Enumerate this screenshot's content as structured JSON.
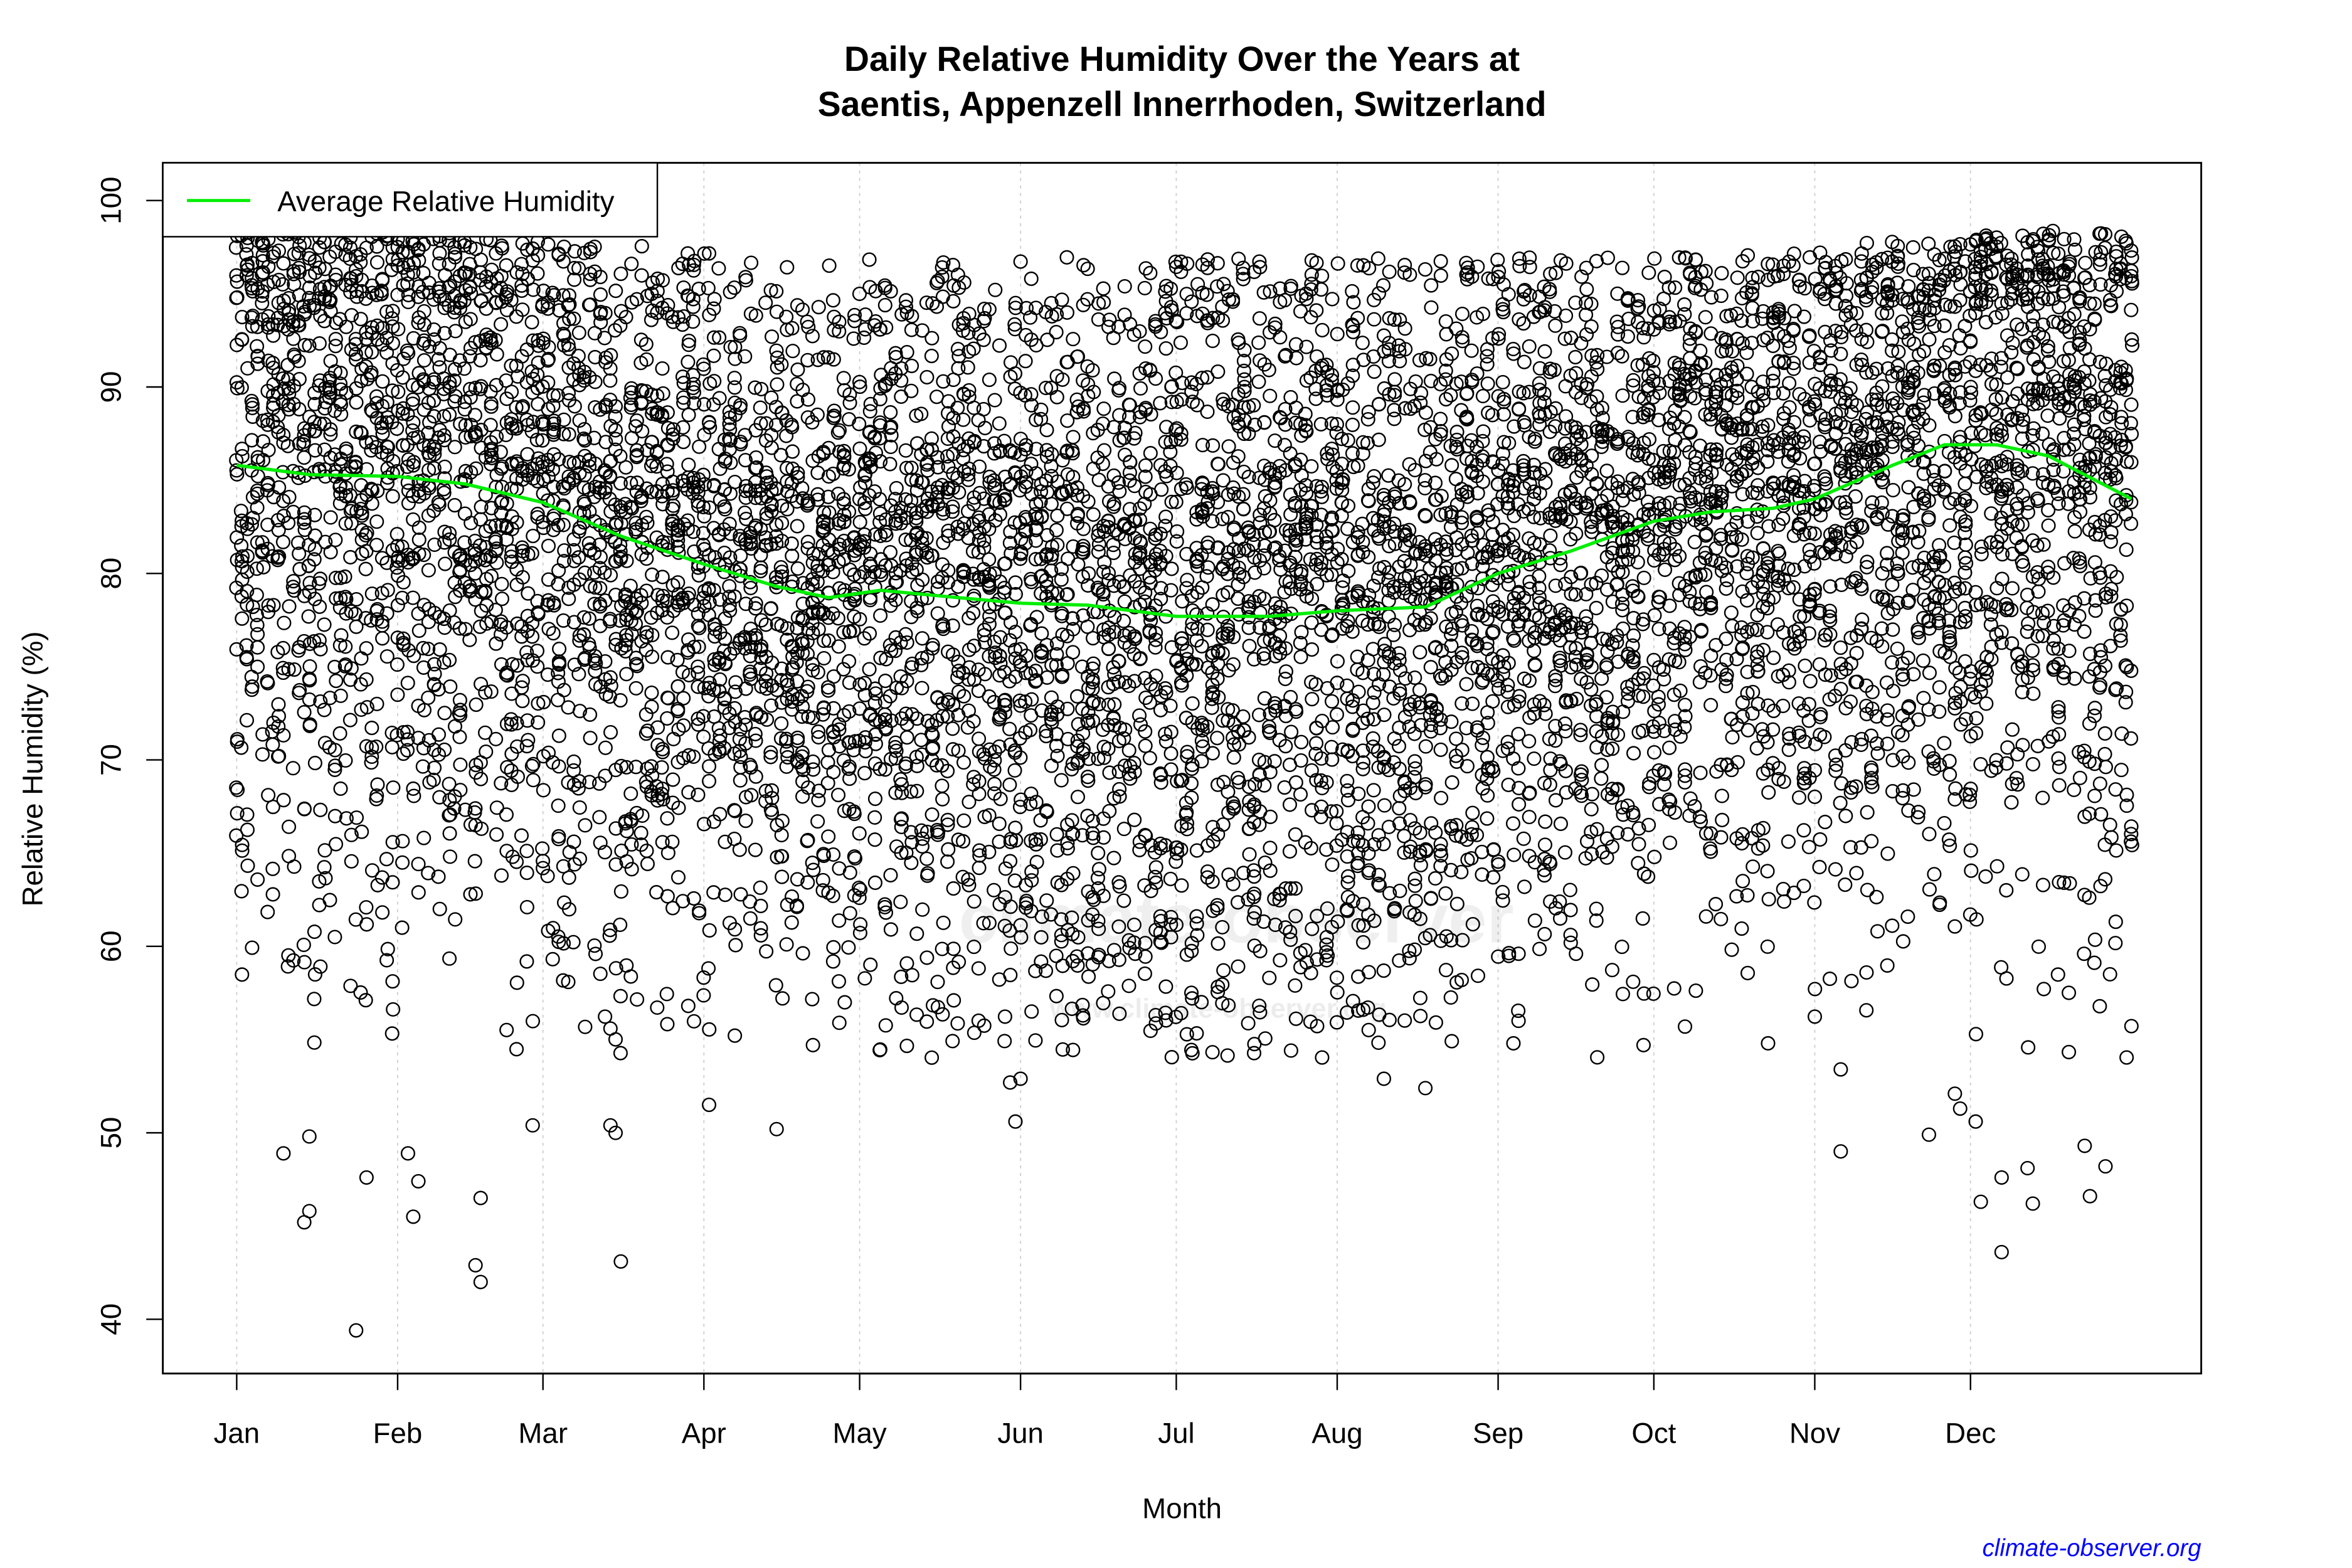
{
  "chart_data": {
    "type": "scatter",
    "title_line1": "Daily Relative Humidity Over the Years at",
    "title_line2": "Saentis, Appenzell Innerrhoden, Switzerland",
    "xlabel": "Month",
    "ylabel": "Relative Humidity  (%)",
    "xlim_days": [
      1,
      366
    ],
    "ylim": [
      38,
      101
    ],
    "yticks": [
      40,
      50,
      60,
      70,
      80,
      90,
      100
    ],
    "xticks": [
      {
        "label": "Jan",
        "day": 1
      },
      {
        "label": "Feb",
        "day": 32
      },
      {
        "label": "Mar",
        "day": 60
      },
      {
        "label": "Apr",
        "day": 91
      },
      {
        "label": "May",
        "day": 121
      },
      {
        "label": "Jun",
        "day": 152
      },
      {
        "label": "Jul",
        "day": 182
      },
      {
        "label": "Aug",
        "day": 213
      },
      {
        "label": "Sep",
        "day": 244
      },
      {
        "label": "Oct",
        "day": 274
      },
      {
        "label": "Nov",
        "day": 305
      },
      {
        "label": "Dec",
        "day": 335
      }
    ],
    "grid": "vertical dotted at month starts",
    "legend": {
      "placement": "top-left",
      "entries": [
        {
          "name": "Average Relative Humidity",
          "color": "#00ee00"
        }
      ]
    },
    "average_line": {
      "name": "Average Relative Humidity",
      "color": "#00ee00",
      "points": [
        [
          1,
          85.8
        ],
        [
          15,
          85.3
        ],
        [
          32,
          85.2
        ],
        [
          45,
          84.8
        ],
        [
          60,
          83.8
        ],
        [
          75,
          82.0
        ],
        [
          91,
          80.5
        ],
        [
          105,
          79.3
        ],
        [
          115,
          78.7
        ],
        [
          125,
          79.1
        ],
        [
          140,
          78.7
        ],
        [
          152,
          78.4
        ],
        [
          165,
          78.3
        ],
        [
          182,
          77.7
        ],
        [
          200,
          77.7
        ],
        [
          213,
          78.0
        ],
        [
          230,
          78.2
        ],
        [
          244,
          80.0
        ],
        [
          258,
          81.2
        ],
        [
          274,
          82.8
        ],
        [
          285,
          83.3
        ],
        [
          297,
          83.5
        ],
        [
          305,
          84.0
        ],
        [
          320,
          85.8
        ],
        [
          330,
          86.9
        ],
        [
          340,
          86.9
        ],
        [
          350,
          86.3
        ],
        [
          366,
          84.0
        ]
      ]
    },
    "points_series": {
      "marker": "open circle",
      "color": "#000000",
      "notable_low_points": [
        [
          24,
          39.4
        ],
        [
          14,
          45.2
        ],
        [
          15,
          45.8
        ],
        [
          26,
          47.6
        ],
        [
          35,
          45.5
        ],
        [
          36,
          47.4
        ],
        [
          34,
          48.9
        ],
        [
          47,
          42.9
        ],
        [
          48,
          42.0
        ],
        [
          48,
          46.5
        ],
        [
          58,
          50.4
        ],
        [
          75,
          43.1
        ],
        [
          73,
          50.4
        ],
        [
          74,
          50.0
        ],
        [
          105,
          50.2
        ],
        [
          92,
          51.5
        ],
        [
          151,
          50.6
        ],
        [
          150,
          52.7
        ],
        [
          152,
          52.9
        ],
        [
          222,
          52.9
        ],
        [
          230,
          52.4
        ],
        [
          270,
          58.1
        ],
        [
          280,
          55.7
        ],
        [
          296,
          54.8
        ],
        [
          310,
          49.0
        ],
        [
          310,
          53.4
        ],
        [
          327,
          49.9
        ],
        [
          333,
          51.3
        ],
        [
          332,
          52.1
        ],
        [
          336,
          50.6
        ],
        [
          337,
          46.3
        ],
        [
          341,
          43.6
        ],
        [
          341,
          47.6
        ],
        [
          346,
          48.1
        ],
        [
          347,
          46.2
        ],
        [
          358,
          46.6
        ],
        [
          361,
          48.2
        ],
        [
          357,
          49.3
        ],
        [
          15,
          49.8
        ],
        [
          10,
          48.9
        ]
      ]
    },
    "watermark": "climate-observer",
    "watermark_url": "www.climate-observer.org",
    "credit": "climate-observer.org"
  }
}
